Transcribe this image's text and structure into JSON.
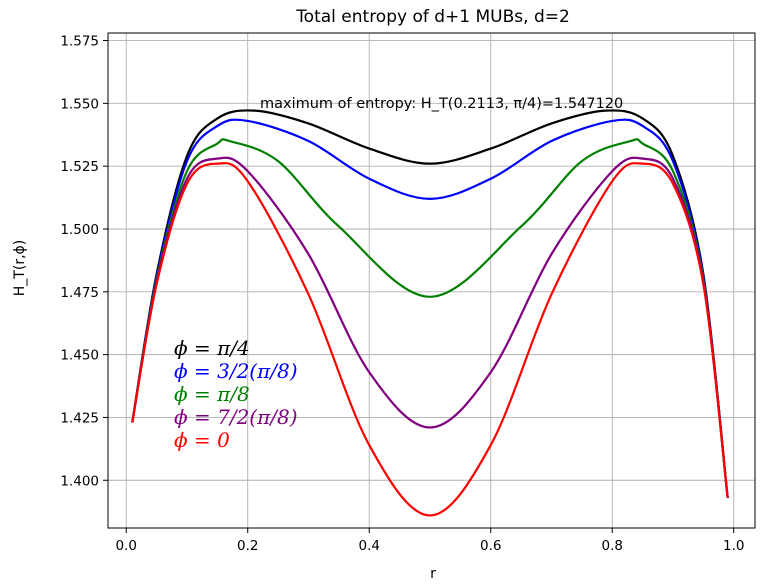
{
  "chart_data": {
    "type": "line",
    "title": "Total entropy of d+1 MUBs, d=2",
    "xlabel": "r",
    "ylabel": "H_T(r,ϕ)",
    "xlim": [
      -0.03,
      1.035
    ],
    "ylim": [
      1.381,
      1.578
    ],
    "xticks": [
      0.0,
      0.2,
      0.4,
      0.6,
      0.8,
      1.0
    ],
    "xtick_labels": [
      "0.0",
      "0.2",
      "0.4",
      "0.6",
      "0.8",
      "1.0"
    ],
    "yticks": [
      1.4,
      1.425,
      1.45,
      1.475,
      1.5,
      1.525,
      1.55,
      1.575
    ],
    "ytick_labels": [
      "1.400",
      "1.425",
      "1.450",
      "1.475",
      "1.500",
      "1.525",
      "1.550",
      "1.575"
    ],
    "grid": true,
    "annotation": "maximum of entropy: H_T(0.2113, π/4)=1.547120",
    "legend_placement": "lower-left",
    "series": [
      {
        "name": "ϕ = π/4",
        "color": "#000000",
        "x": [
          0.01,
          0.05,
          0.1,
          0.15,
          0.2113,
          0.3,
          0.4,
          0.5,
          0.6,
          0.7,
          0.7887,
          0.85,
          0.9,
          0.95,
          0.99
        ],
        "y": [
          1.423,
          1.482,
          1.529,
          1.544,
          1.5471,
          1.542,
          1.532,
          1.526,
          1.532,
          1.542,
          1.5471,
          1.544,
          1.529,
          1.482,
          1.393
        ]
      },
      {
        "name": "ϕ = 3/2(π/8)",
        "color": "#0000ff",
        "x": [
          0.01,
          0.05,
          0.1,
          0.15,
          0.2,
          0.3,
          0.4,
          0.5,
          0.6,
          0.7,
          0.8,
          0.85,
          0.9,
          0.95,
          0.99
        ],
        "y": [
          1.423,
          1.481,
          1.527,
          1.541,
          1.543,
          1.535,
          1.52,
          1.512,
          1.52,
          1.535,
          1.543,
          1.541,
          1.527,
          1.481,
          1.393
        ]
      },
      {
        "name": "ϕ = π/8",
        "color": "#008000",
        "x": [
          0.01,
          0.05,
          0.1,
          0.15,
          0.17,
          0.25,
          0.35,
          0.5,
          0.65,
          0.75,
          0.83,
          0.85,
          0.9,
          0.95,
          0.99
        ],
        "y": [
          1.423,
          1.48,
          1.523,
          1.534,
          1.535,
          1.527,
          1.501,
          1.473,
          1.501,
          1.527,
          1.535,
          1.534,
          1.523,
          1.48,
          1.393
        ]
      },
      {
        "name": "ϕ = 7/2(π/8)",
        "color": "#800080",
        "x": [
          0.01,
          0.05,
          0.1,
          0.15,
          0.2,
          0.3,
          0.4,
          0.5,
          0.6,
          0.7,
          0.8,
          0.85,
          0.9,
          0.95,
          0.99
        ],
        "y": [
          1.423,
          1.479,
          1.52,
          1.528,
          1.523,
          1.49,
          1.443,
          1.421,
          1.443,
          1.49,
          1.523,
          1.528,
          1.52,
          1.479,
          1.393
        ]
      },
      {
        "name": "ϕ = 0",
        "color": "#ff0000",
        "x": [
          0.01,
          0.05,
          0.1,
          0.15,
          0.2,
          0.3,
          0.4,
          0.5,
          0.6,
          0.7,
          0.8,
          0.85,
          0.9,
          0.95,
          0.99
        ],
        "y": [
          1.423,
          1.478,
          1.518,
          1.526,
          1.519,
          1.474,
          1.414,
          1.386,
          1.414,
          1.474,
          1.519,
          1.526,
          1.518,
          1.478,
          1.393
        ]
      }
    ]
  }
}
